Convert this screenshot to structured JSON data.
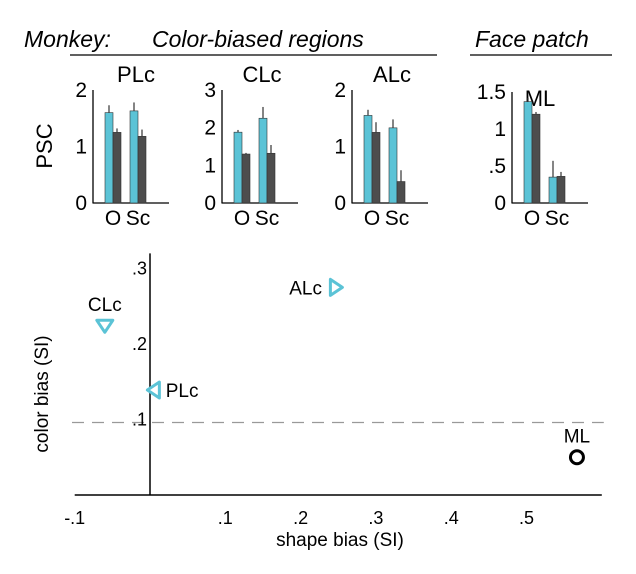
{
  "headers": {
    "monkey": "Monkey:",
    "color_biased": "Color-biased regions",
    "face_patch": "Face patch"
  },
  "colors": {
    "object_bar": "#5bc3d6",
    "scrambled_bar": "#4d4d4d",
    "color_region_marker": "#5bc3d6",
    "face_region_marker": "#000000",
    "reference_line": "#999999"
  },
  "chart_data": [
    {
      "type": "bar",
      "title": "PLc",
      "ylabel": "PSC",
      "categories": [
        "O",
        "Sc"
      ],
      "ylim": [
        0,
        2
      ],
      "yticks": [
        0,
        1,
        2
      ],
      "ytick_labels": [
        "0",
        "1",
        "2"
      ],
      "series": [
        {
          "values": [
            1.6,
            1.63
          ],
          "errors": [
            0.13,
            0.15
          ]
        },
        {
          "values": [
            1.25,
            1.18
          ],
          "errors": [
            0.07,
            0.12
          ]
        }
      ]
    },
    {
      "type": "bar",
      "title": "CLc",
      "categories": [
        "O",
        "Sc"
      ],
      "ylim": [
        0,
        3
      ],
      "yticks": [
        0,
        1,
        2,
        3
      ],
      "ytick_labels": [
        "0",
        "1",
        "2",
        "3"
      ],
      "series": [
        {
          "values": [
            1.88,
            2.25
          ],
          "errors": [
            0.06,
            0.3
          ]
        },
        {
          "values": [
            1.3,
            1.32
          ],
          "errors": [
            0.03,
            0.22
          ]
        }
      ]
    },
    {
      "type": "bar",
      "title": "ALc",
      "categories": [
        "O",
        "Sc"
      ],
      "ylim": [
        0,
        2
      ],
      "yticks": [
        0,
        1,
        2
      ],
      "ytick_labels": [
        "0",
        "1",
        "2"
      ],
      "series": [
        {
          "values": [
            1.55,
            1.33
          ],
          "errors": [
            0.1,
            0.15
          ]
        },
        {
          "values": [
            1.25,
            0.38
          ],
          "errors": [
            0.18,
            0.2
          ]
        }
      ]
    },
    {
      "type": "bar",
      "title": "ML",
      "categories": [
        "O",
        "Sc"
      ],
      "ylim": [
        0,
        1.5
      ],
      "yticks": [
        0,
        0.5,
        1,
        1.5
      ],
      "ytick_labels": [
        "0",
        ".5",
        "1",
        "1.5"
      ],
      "series": [
        {
          "values": [
            1.37,
            0.35
          ],
          "errors": [
            0.05,
            0.22
          ]
        },
        {
          "values": [
            1.2,
            0.36
          ],
          "errors": [
            0.03,
            0.06
          ]
        }
      ]
    },
    {
      "type": "scatter",
      "xlabel": "shape bias (SI)",
      "ylabel": "color bias (SI)",
      "xlim": [
        -0.1,
        0.6
      ],
      "ylim": [
        0,
        0.32
      ],
      "xticks": [
        -0.1,
        0.1,
        0.2,
        0.3,
        0.4,
        0.5
      ],
      "xtick_labels": [
        "-.1",
        ".1",
        ".2",
        ".3",
        ".4",
        ".5"
      ],
      "yticks": [
        0.1,
        0.2,
        0.3
      ],
      "ytick_labels": [
        ".1",
        ".2",
        ".3"
      ],
      "reference_y": 0.096,
      "points": [
        {
          "label": "CLc",
          "x": -0.06,
          "y": 0.224,
          "marker": "triangle-down",
          "color": "#5bc3d6",
          "label_pos": "above"
        },
        {
          "label": "PLc",
          "x": 0.005,
          "y": 0.139,
          "marker": "triangle-left",
          "color": "#5bc3d6",
          "label_pos": "right"
        },
        {
          "label": "ALc",
          "x": 0.247,
          "y": 0.275,
          "marker": "triangle-right",
          "color": "#5bc3d6",
          "label_pos": "left"
        },
        {
          "label": "ML",
          "x": 0.567,
          "y": 0.05,
          "marker": "circle",
          "color": "#000000",
          "label_pos": "above"
        }
      ]
    }
  ]
}
